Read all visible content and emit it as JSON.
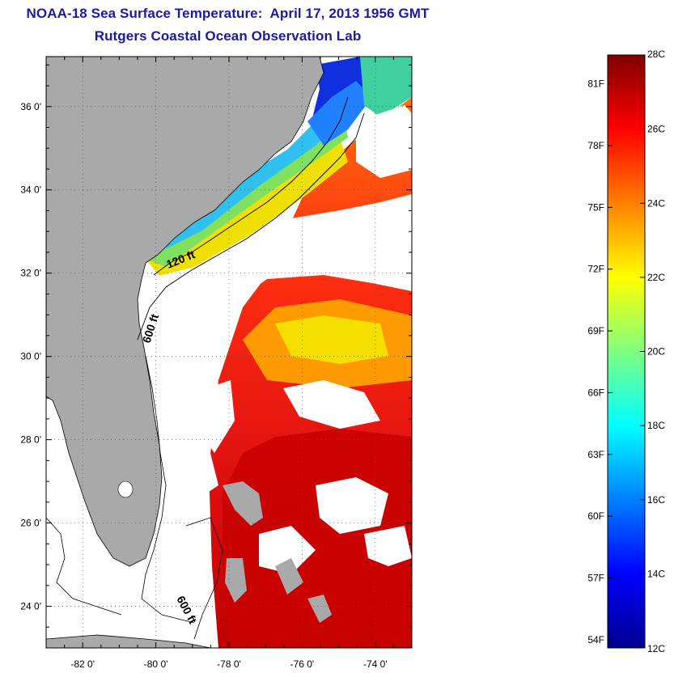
{
  "title": {
    "line1": "NOAA-18 Sea Surface Temperature:  April 17, 2013 1956 GMT",
    "line2": "Rutgers Coastal Ocean Observation Lab"
  },
  "map": {
    "lat_range": [
      23,
      37.2
    ],
    "lon_range": [
      -83,
      -73
    ],
    "lat_ticks": [
      {
        "value": 24,
        "label": "24 0'"
      },
      {
        "value": 26,
        "label": "26 0'"
      },
      {
        "value": 28,
        "label": "28 0'"
      },
      {
        "value": 30,
        "label": "30 0'"
      },
      {
        "value": 32,
        "label": "32 0'"
      },
      {
        "value": 34,
        "label": "34 0'"
      },
      {
        "value": 36,
        "label": "36 0'"
      }
    ],
    "lon_ticks": [
      {
        "value": -82,
        "label": "-82 0'"
      },
      {
        "value": -80,
        "label": "-80 0'"
      },
      {
        "value": -78,
        "label": "-78 0'"
      },
      {
        "value": -76,
        "label": "-76 0'"
      },
      {
        "value": -74,
        "label": "-74 0'"
      }
    ],
    "grid": "dotted",
    "colors": {
      "land": "#a9a9a9",
      "cloud": "#ffffff",
      "coastline": "#000000"
    },
    "contour_labels": {
      "shelf_120": "120 ft",
      "slope_600_north": "600 ft",
      "slope_600_south": "600 ft"
    }
  },
  "colorbar": {
    "celsius_min": 12,
    "celsius_max": 28,
    "celsius_ticks": [
      {
        "value": 12,
        "label": "12C"
      },
      {
        "value": 14,
        "label": "14C"
      },
      {
        "value": 16,
        "label": "16C"
      },
      {
        "value": 18,
        "label": "18C"
      },
      {
        "value": 20,
        "label": "20C"
      },
      {
        "value": 22,
        "label": "22C"
      },
      {
        "value": 24,
        "label": "24C"
      },
      {
        "value": 26,
        "label": "26C"
      },
      {
        "value": 28,
        "label": "28C"
      }
    ],
    "fahrenheit_ticks": [
      {
        "value": 54,
        "label": "54F"
      },
      {
        "value": 57,
        "label": "57F"
      },
      {
        "value": 60,
        "label": "60F"
      },
      {
        "value": 63,
        "label": "63F"
      },
      {
        "value": 66,
        "label": "66F"
      },
      {
        "value": 69,
        "label": "69F"
      },
      {
        "value": 72,
        "label": "72F"
      },
      {
        "value": 75,
        "label": "75F"
      },
      {
        "value": 78,
        "label": "78F"
      },
      {
        "value": 81,
        "label": "81F"
      }
    ],
    "colormap": "jet"
  }
}
